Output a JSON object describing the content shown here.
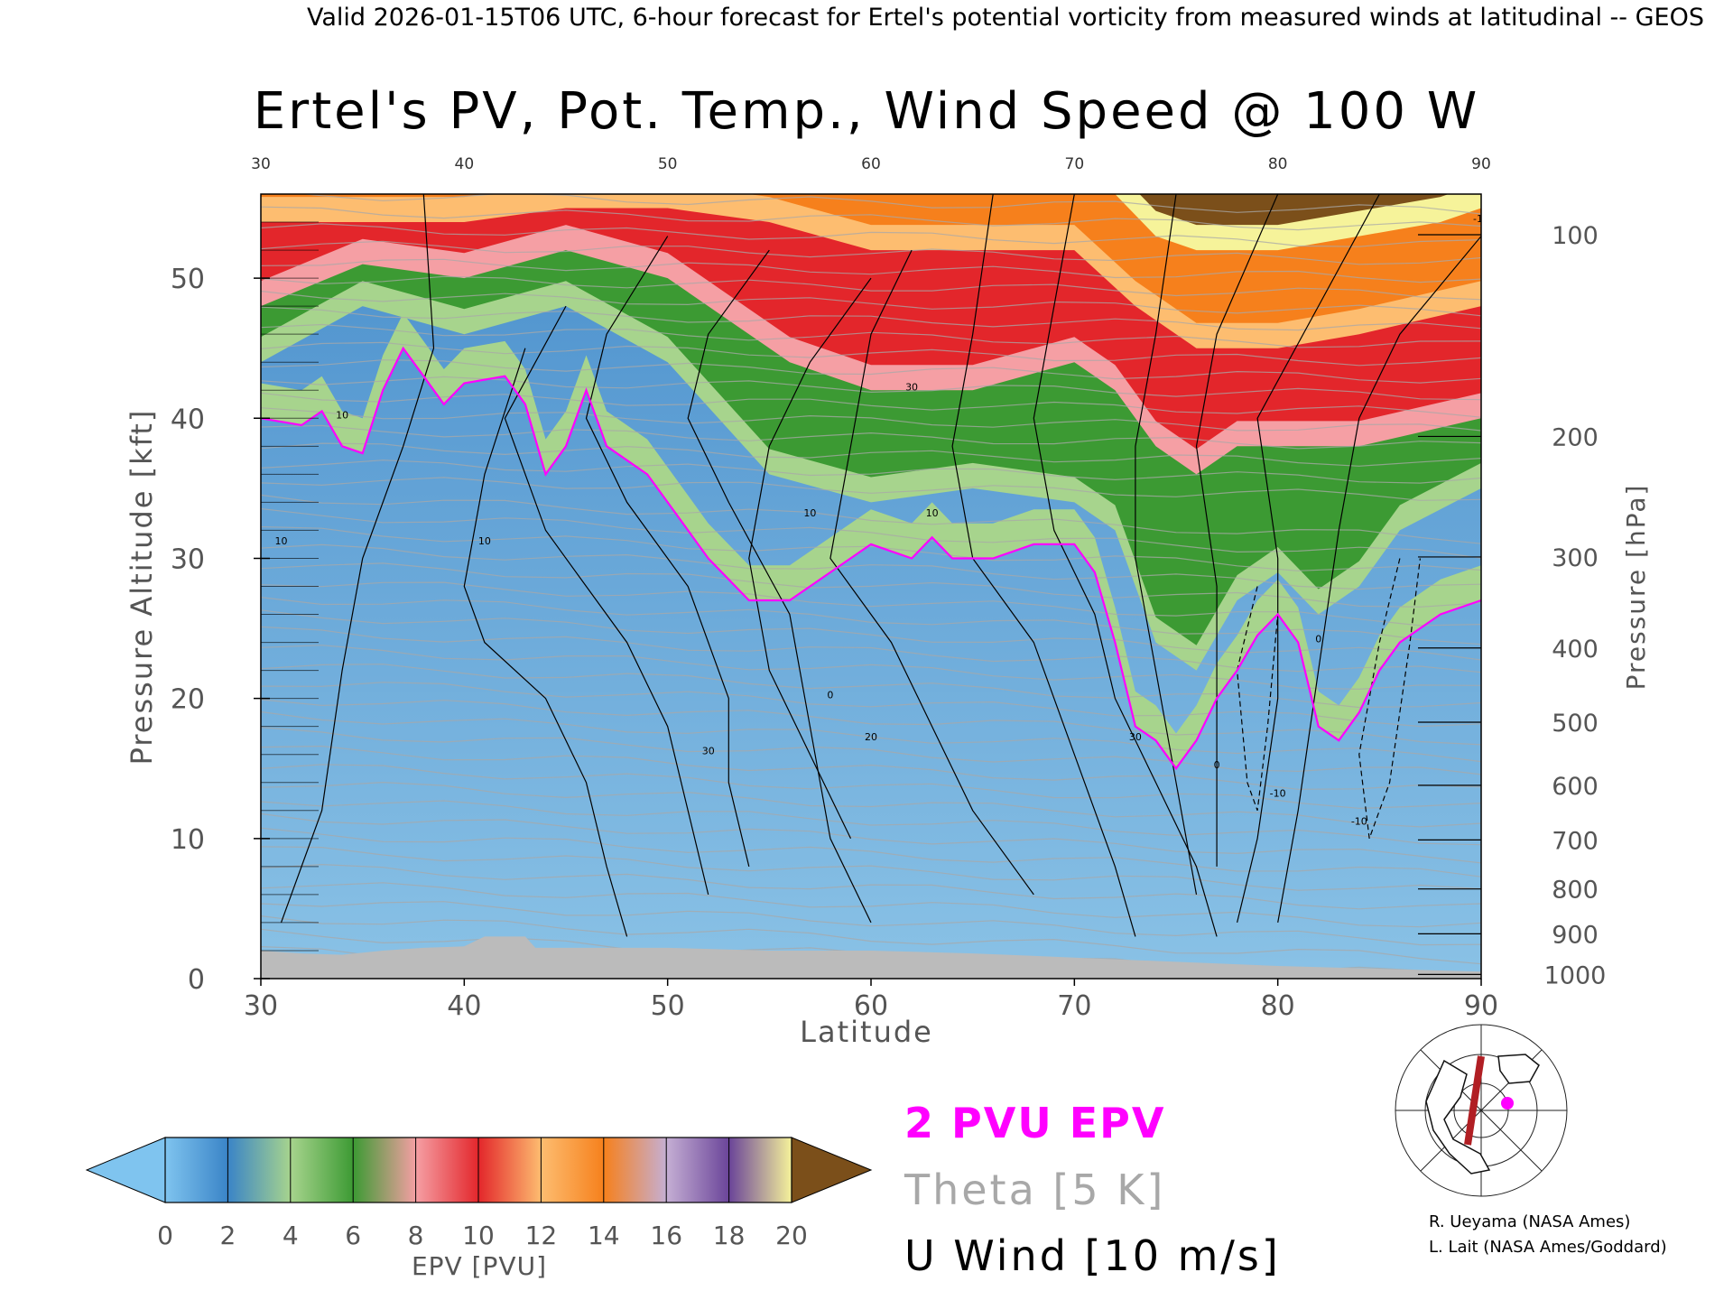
{
  "header": {
    "caption": "Valid 2026-01-15T06 UTC, 6-hour forecast for Ertel's potential vorticity from measured winds at latitudinal -- GEOS"
  },
  "chart_data": {
    "type": "heatmap",
    "title": "Ertel's PV, Pot. Temp., Wind Speed @ 100 W",
    "xlabel": "Latitude",
    "ylabel": "Pressure Altitude [kft]",
    "y2label": "Pressure [hPa]",
    "xlim": [
      30,
      90
    ],
    "ylim": [
      0,
      56
    ],
    "x_ticks": [
      "30",
      "40",
      "50",
      "60",
      "70",
      "80",
      "90"
    ],
    "x_top_ticks": [
      "30",
      "40",
      "50",
      "60",
      "70",
      "80",
      "90"
    ],
    "y_ticks": [
      "0",
      "10",
      "20",
      "30",
      "40",
      "50"
    ],
    "pressure_ticks": [
      {
        "label": "100",
        "kft": 53.1
      },
      {
        "label": "200",
        "kft": 38.7
      },
      {
        "label": "300",
        "kft": 30.1
      },
      {
        "label": "400",
        "kft": 23.6
      },
      {
        "label": "500",
        "kft": 18.3
      },
      {
        "label": "600",
        "kft": 13.8
      },
      {
        "label": "700",
        "kft": 9.9
      },
      {
        "label": "800",
        "kft": 6.4
      },
      {
        "label": "900",
        "kft": 3.2
      },
      {
        "label": "1000",
        "kft": 0.3
      }
    ],
    "surface_kft": [
      [
        30,
        2.0
      ],
      [
        32,
        1.8
      ],
      [
        34,
        1.7
      ],
      [
        36,
        2.0
      ],
      [
        38,
        2.2
      ],
      [
        40,
        2.3
      ],
      [
        41,
        3.0
      ],
      [
        43,
        3.0
      ],
      [
        43.5,
        2.2
      ],
      [
        46,
        2.2
      ],
      [
        50,
        2.2
      ],
      [
        55,
        2.0
      ],
      [
        60,
        2.0
      ],
      [
        65,
        1.8
      ],
      [
        70,
        1.5
      ],
      [
        75,
        1.2
      ],
      [
        80,
        0.9
      ],
      [
        85,
        0.7
      ],
      [
        90,
        0.5
      ]
    ],
    "tropopause_2pvu_kft": [
      [
        30,
        40
      ],
      [
        32,
        39.5
      ],
      [
        33,
        40.5
      ],
      [
        34,
        38
      ],
      [
        35,
        37.5
      ],
      [
        36,
        42
      ],
      [
        37,
        45
      ],
      [
        38,
        43
      ],
      [
        39,
        41
      ],
      [
        40,
        42.5
      ],
      [
        42,
        43
      ],
      [
        43,
        41
      ],
      [
        44,
        36
      ],
      [
        45,
        38
      ],
      [
        46,
        42
      ],
      [
        47,
        38
      ],
      [
        48,
        37
      ],
      [
        49,
        36
      ],
      [
        50,
        34
      ],
      [
        52,
        30
      ],
      [
        54,
        27
      ],
      [
        56,
        27
      ],
      [
        58,
        29
      ],
      [
        60,
        31
      ],
      [
        62,
        30
      ],
      [
        63,
        31.5
      ],
      [
        64,
        30
      ],
      [
        66,
        30
      ],
      [
        68,
        31
      ],
      [
        70,
        31
      ],
      [
        71,
        29
      ],
      [
        72,
        24
      ],
      [
        73,
        18
      ],
      [
        74,
        17
      ],
      [
        75,
        15
      ],
      [
        76,
        17
      ],
      [
        77,
        20
      ],
      [
        78,
        22
      ],
      [
        79,
        24.5
      ],
      [
        80,
        26
      ],
      [
        81,
        24
      ],
      [
        82,
        18
      ],
      [
        83,
        17
      ],
      [
        84,
        19
      ],
      [
        85,
        22
      ],
      [
        86,
        24
      ],
      [
        88,
        26
      ],
      [
        90,
        27
      ]
    ],
    "upper_color_bands_kft": [
      {
        "pvu_min": 4,
        "pvu_max": 6,
        "boundary": [
          [
            30,
            44
          ],
          [
            35,
            48
          ],
          [
            40,
            46
          ],
          [
            45,
            48
          ],
          [
            50,
            44
          ],
          [
            55,
            36
          ],
          [
            60,
            34
          ],
          [
            65,
            35
          ],
          [
            70,
            34
          ],
          [
            72,
            32
          ],
          [
            74,
            24
          ],
          [
            76,
            22
          ],
          [
            78,
            27
          ],
          [
            80,
            29
          ],
          [
            82,
            26
          ],
          [
            84,
            28
          ],
          [
            86,
            32
          ],
          [
            90,
            35
          ]
        ]
      },
      {
        "pvu_min": 8,
        "pvu_max": 10,
        "boundary": [
          [
            30,
            48
          ],
          [
            35,
            51
          ],
          [
            40,
            50
          ],
          [
            45,
            52
          ],
          [
            50,
            50
          ],
          [
            53,
            47
          ],
          [
            56,
            44
          ],
          [
            60,
            42
          ],
          [
            65,
            42
          ],
          [
            70,
            44
          ],
          [
            72,
            42
          ],
          [
            74,
            38
          ],
          [
            76,
            36
          ],
          [
            78,
            38
          ],
          [
            80,
            38
          ],
          [
            84,
            38
          ],
          [
            90,
            40
          ]
        ]
      },
      {
        "pvu_min": 12,
        "pvu_max": 14,
        "boundary": [
          [
            30,
            54
          ],
          [
            35,
            54
          ],
          [
            40,
            54
          ],
          [
            45,
            55
          ],
          [
            50,
            55
          ],
          [
            55,
            54
          ],
          [
            60,
            52
          ],
          [
            65,
            52
          ],
          [
            70,
            52
          ],
          [
            73,
            48
          ],
          [
            76,
            45
          ],
          [
            80,
            45
          ],
          [
            84,
            46
          ],
          [
            90,
            48
          ]
        ]
      },
      {
        "pvu_min": 18,
        "pvu_max": 20,
        "boundary": [
          [
            72,
            56
          ],
          [
            74,
            53
          ],
          [
            76,
            52
          ],
          [
            80,
            52
          ],
          [
            84,
            53
          ],
          [
            88,
            54
          ],
          [
            90,
            55
          ]
        ]
      }
    ],
    "colorbar": {
      "label": "EPV [PVU]",
      "ticks": [
        "0",
        "2",
        "4",
        "6",
        "8",
        "10",
        "12",
        "14",
        "16",
        "18",
        "20"
      ],
      "colors": [
        "#7fc4ef",
        "#3a84c7",
        "#a7d48d",
        "#3c9a33",
        "#f59fa4",
        "#e3262b",
        "#fdbd70",
        "#f6801c",
        "#c5afd4",
        "#6a4499",
        "#f6f39a",
        "#7b4f1a"
      ],
      "under_color": "#7fc4ef",
      "over_color": "#7b4f1a"
    },
    "legend": {
      "epv_label": "2 PVU EPV",
      "theta_label": "Theta [5 K]",
      "wind_label": "U Wind [10 m/s]",
      "epv_color": "#ff00ff",
      "theta_color": "#a8a8a8",
      "wind_color": "#000000"
    },
    "contour_labels": [
      "10",
      "10",
      "10",
      "10",
      "10",
      "20",
      "30",
      "30",
      "30",
      "0",
      "0",
      "0",
      "-10",
      "-10",
      "-10"
    ]
  },
  "credits": {
    "line1": "R. Ueyama (NASA Ames)",
    "line2": "L. Lait (NASA Ames/Goddard)"
  }
}
